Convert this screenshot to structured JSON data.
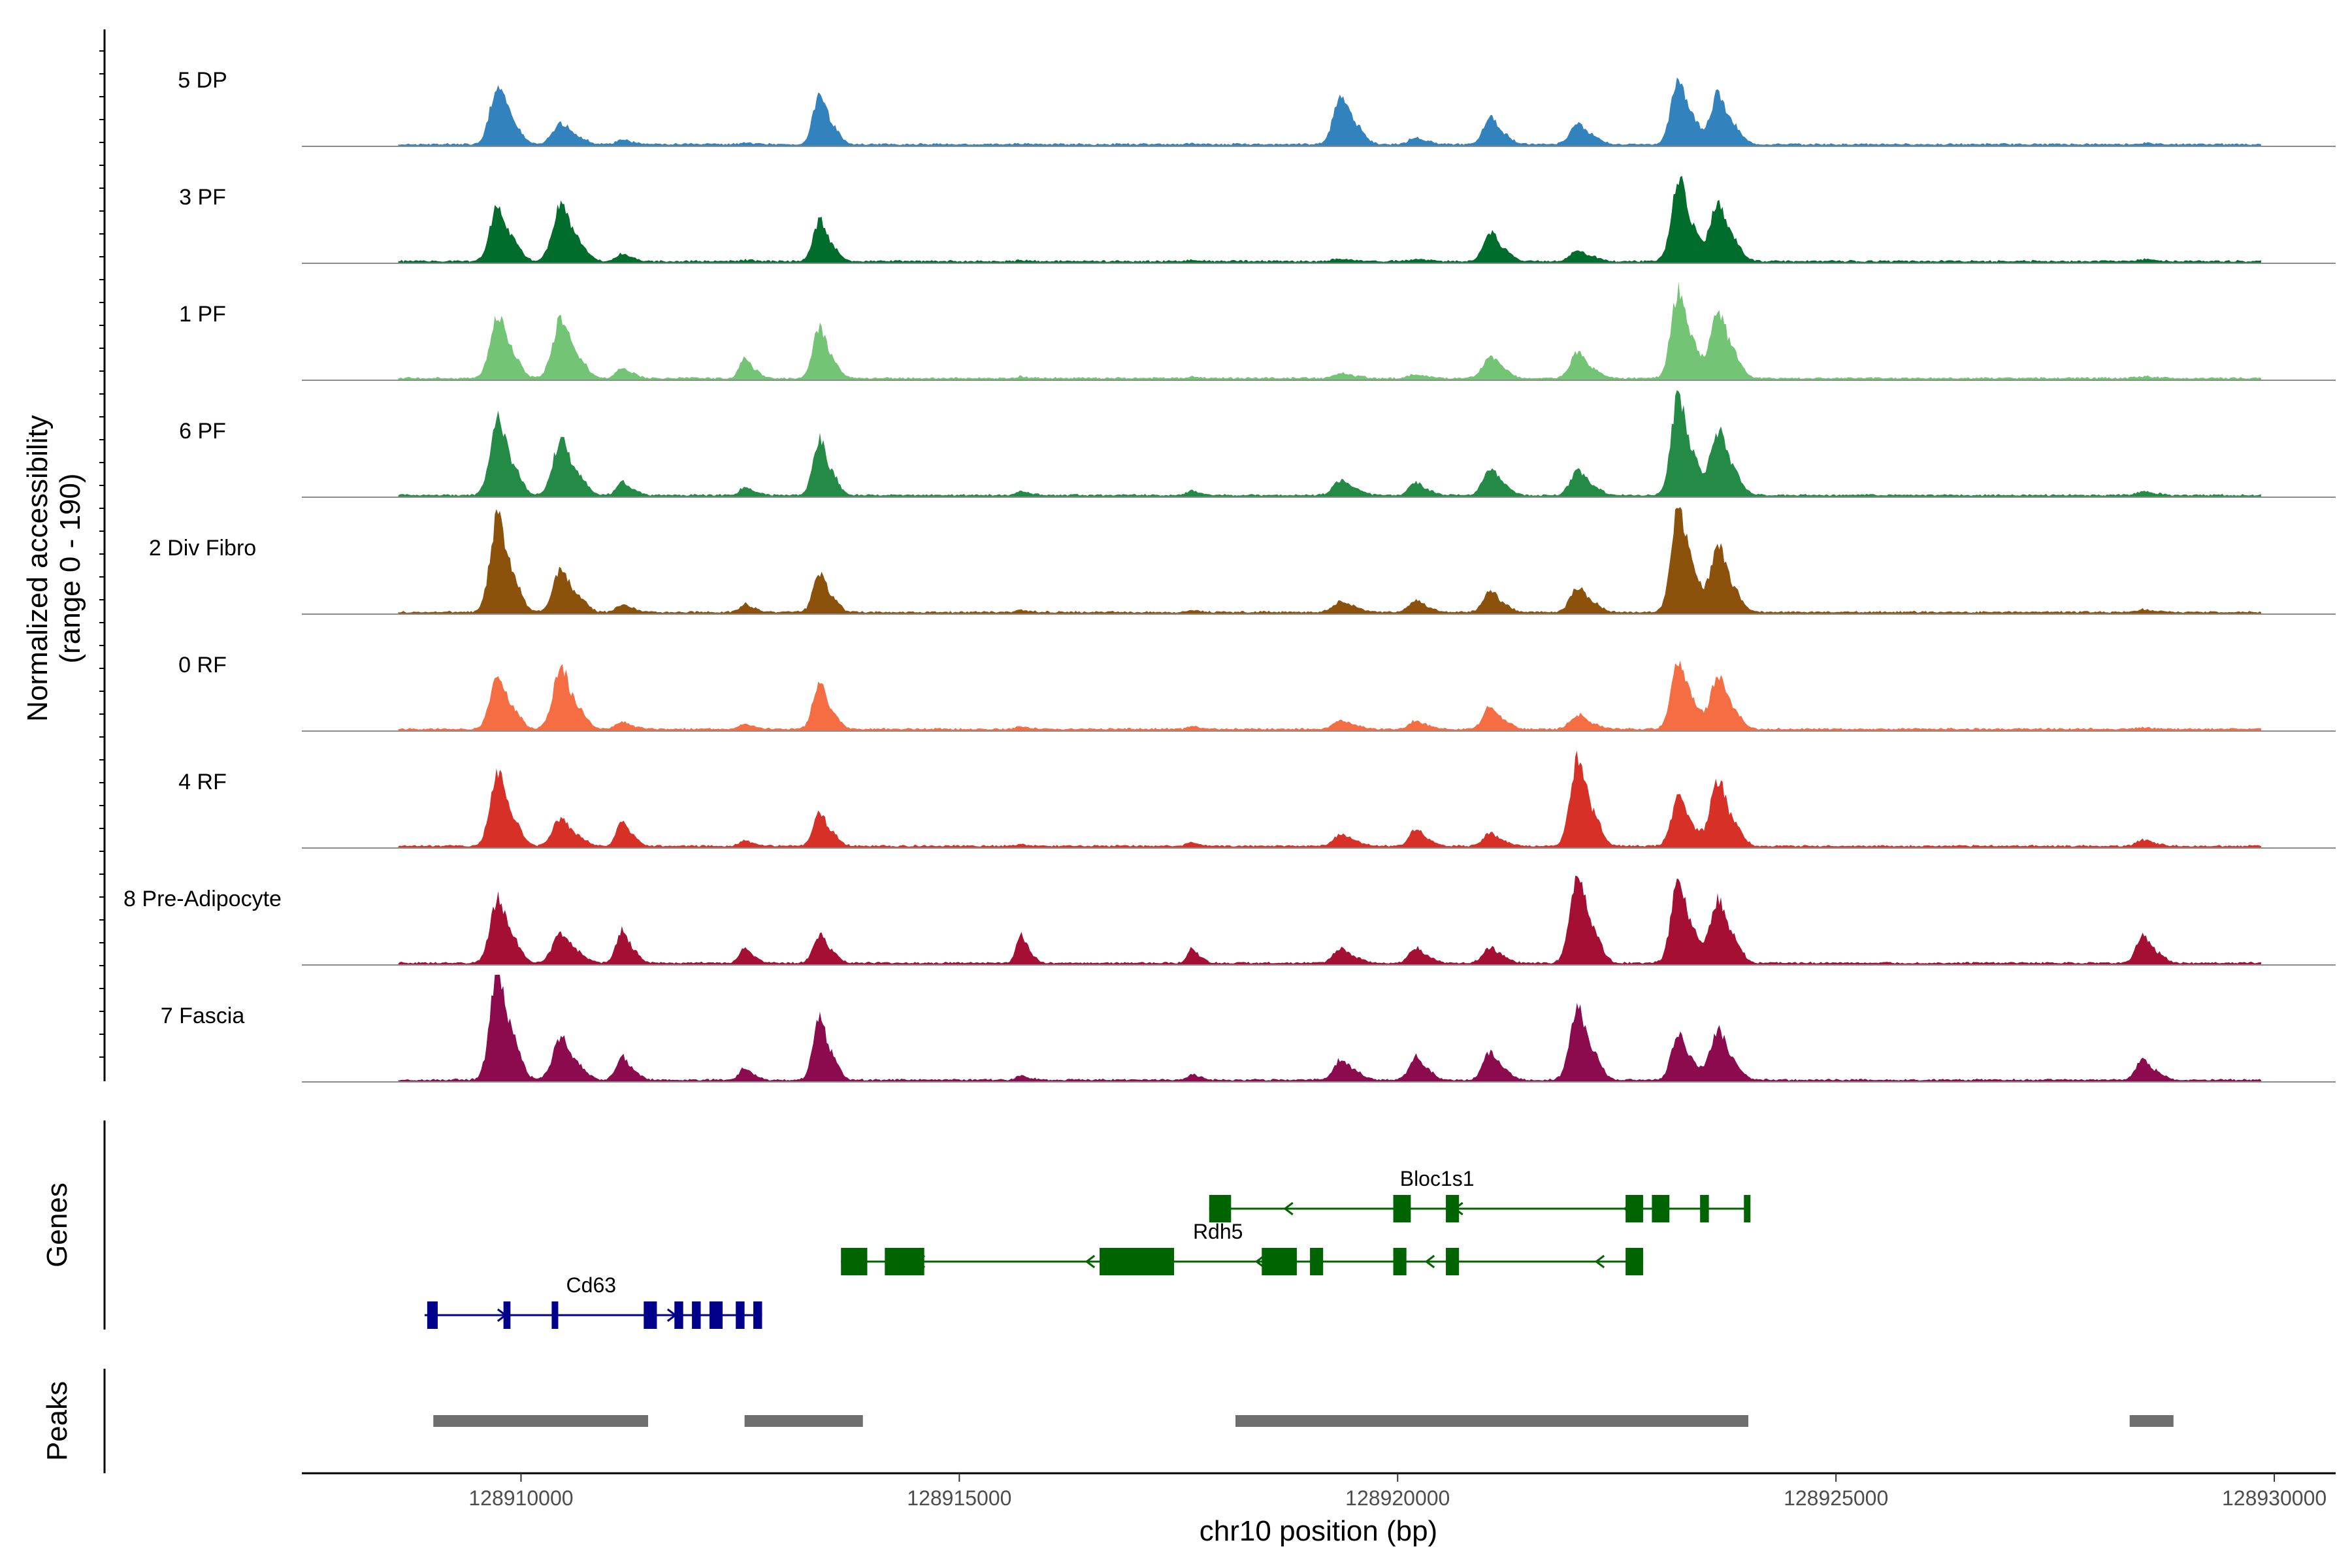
{
  "chart_data": {
    "type": "area",
    "title": "",
    "ylabel_line1": "Normalized accessibility",
    "ylabel_line2": "(range 0 - 190)",
    "y_range": [
      0,
      190
    ],
    "xlabel": "chr10 position (bp)",
    "x_range": [
      128907500,
      128930700
    ],
    "x_ticks": [
      128910000,
      128915000,
      128920000,
      128925000,
      128930000
    ],
    "x_tick_labels": [
      "128910000",
      "128915000",
      "128920000",
      "128925000",
      "128930000"
    ],
    "signal_start": 128908600,
    "signal_end": 128929850,
    "peak_centers": [
      128909730,
      128910450,
      128911150,
      128912550,
      128913400,
      128915700,
      128917650,
      128919350,
      128920200,
      128921050,
      128922050,
      128923200,
      128923650,
      128928500
    ],
    "tracks": [
      {
        "name": "5 DP",
        "color": "#3182bd",
        "peaks": [
          100,
          36,
          8,
          2,
          86,
          1,
          1,
          84,
          12,
          46,
          36,
          112,
          84,
          2
        ]
      },
      {
        "name": "3 PF",
        "color": "#006d2c",
        "peaks": [
          92,
          96,
          12,
          2,
          70,
          2,
          2,
          4,
          4,
          50,
          18,
          140,
          100,
          3
        ]
      },
      {
        "name": "1 PF",
        "color": "#74c476",
        "peaks": [
          110,
          100,
          18,
          34,
          88,
          3,
          3,
          8,
          6,
          38,
          42,
          150,
          115,
          3
        ]
      },
      {
        "name": "6 PF",
        "color": "#238b45",
        "peaks": [
          130,
          92,
          22,
          14,
          94,
          8,
          8,
          26,
          22,
          46,
          42,
          170,
          110,
          6
        ]
      },
      {
        "name": "2 Div Fibro",
        "color": "#8c510a",
        "peaks": [
          160,
          70,
          14,
          14,
          64,
          4,
          4,
          18,
          20,
          36,
          42,
          180,
          110,
          4
        ]
      },
      {
        "name": "0 RF",
        "color": "#f46d43",
        "peaks": [
          90,
          100,
          12,
          10,
          78,
          5,
          5,
          14,
          14,
          40,
          24,
          118,
          88,
          2
        ]
      },
      {
        "name": "4 RF",
        "color": "#d73027",
        "peaks": [
          124,
          46,
          40,
          10,
          56,
          3,
          6,
          20,
          28,
          22,
          144,
          80,
          110,
          10
        ]
      },
      {
        "name": "8 Pre-Adipocyte",
        "color": "#a50f34",
        "peaks": [
          110,
          50,
          56,
          24,
          48,
          48,
          24,
          24,
          26,
          26,
          150,
          140,
          110,
          46
        ]
      },
      {
        "name": "7 Fascia",
        "color": "#8c0a4e",
        "peaks": [
          186,
          70,
          40,
          20,
          104,
          8,
          10,
          34,
          40,
          48,
          120,
          76,
          84,
          34
        ]
      }
    ],
    "genes_label": "Genes",
    "genes": [
      {
        "name": "Bloc1s1",
        "strand": "-",
        "color": "#006400",
        "row": 0,
        "start": 128917850,
        "end": 128924000,
        "exons": [
          [
            128917850,
            128918100
          ],
          [
            128919950,
            128920150
          ],
          [
            128920550,
            128920700
          ],
          [
            128922600,
            128922800
          ],
          [
            128922900,
            128923100
          ],
          [
            128923450,
            128923550
          ],
          [
            128923950,
            128924000
          ]
        ]
      },
      {
        "name": "Rdh5",
        "strand": "-",
        "color": "#006400",
        "row": 1,
        "start": 128913650,
        "end": 128922800,
        "exons": [
          [
            128913650,
            128913950
          ],
          [
            128914150,
            128914600
          ],
          [
            128916600,
            128917450
          ],
          [
            128918450,
            128918850
          ],
          [
            128919000,
            128919150
          ],
          [
            128919950,
            128920100
          ],
          [
            128920550,
            128920700
          ],
          [
            128922600,
            128922800
          ]
        ]
      },
      {
        "name": "Cd63",
        "strand": "+",
        "color": "#00008b",
        "row": 2,
        "start": 128908900,
        "end": 128912750,
        "exons": [
          [
            128908930,
            128909050
          ],
          [
            128909800,
            128909880
          ],
          [
            128910350,
            128910420
          ],
          [
            128911400,
            128911550
          ],
          [
            128911750,
            128911850
          ],
          [
            128911950,
            128912050
          ],
          [
            128912150,
            128912300
          ],
          [
            128912450,
            128912550
          ],
          [
            128912650,
            128912750
          ]
        ]
      }
    ],
    "peaks_label": "Peaks",
    "peak_regions": [
      [
        128909000,
        128911450
      ],
      [
        128912550,
        128913900
      ],
      [
        128918150,
        128924000
      ],
      [
        128928350,
        128928850
      ]
    ]
  }
}
